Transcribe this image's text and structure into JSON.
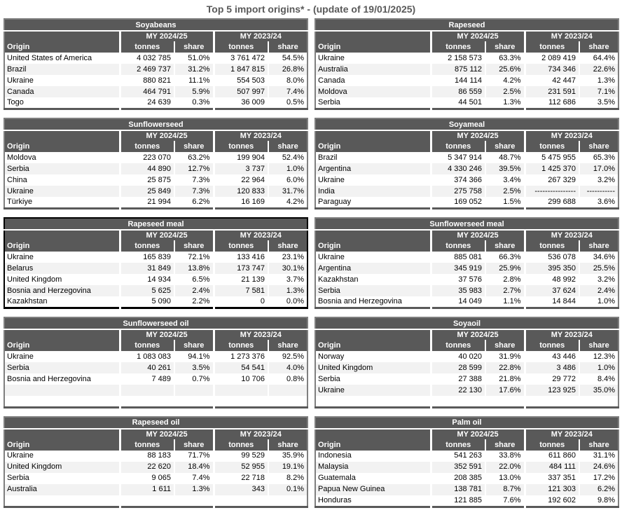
{
  "page_title": "Top 5 import origins* - (update of 19/01/2025)",
  "table_headers": {
    "origin": "Origin",
    "period_current": "MY 2024/25",
    "period_previous": "MY 2023/24",
    "tonnes": "tonnes",
    "share": "share"
  },
  "colors": {
    "header_bg": "#595959",
    "row_alt_bg": "#f2f2f2",
    "table_border": "#7f7f7f",
    "table_border_bottom": "#595959",
    "highlight_border": "#000000",
    "title_text": "#595959"
  },
  "tables": [
    {
      "name": "Soyabeans",
      "highlighted": false,
      "rows": [
        [
          "United States of America",
          "4 032 785",
          "51.0%",
          "3 761 472",
          "54.5%"
        ],
        [
          "Brazil",
          "2 469 737",
          "31.2%",
          "1 847 815",
          "26.8%"
        ],
        [
          "Ukraine",
          "880 821",
          "11.1%",
          "554 503",
          "8.0%"
        ],
        [
          "Canada",
          "464 791",
          "5.9%",
          "507 997",
          "7.4%"
        ],
        [
          "Togo",
          "24 639",
          "0.3%",
          "36 009",
          "0.5%"
        ]
      ]
    },
    {
      "name": "Rapeseed",
      "highlighted": false,
      "rows": [
        [
          "Ukraine",
          "2 158 573",
          "63.3%",
          "2 089 419",
          "64.4%"
        ],
        [
          "Australia",
          "875 112",
          "25.6%",
          "734 346",
          "22.6%"
        ],
        [
          "Canada",
          "144 114",
          "4.2%",
          "42 447",
          "1.3%"
        ],
        [
          "Moldova",
          "86 559",
          "2.5%",
          "231 591",
          "7.1%"
        ],
        [
          "Serbia",
          "44 501",
          "1.3%",
          "112 686",
          "3.5%"
        ]
      ]
    },
    {
      "name": "Sunflowerseed",
      "highlighted": false,
      "rows": [
        [
          "Moldova",
          "223 070",
          "63.2%",
          "199 904",
          "52.4%"
        ],
        [
          "Serbia",
          "44 890",
          "12.7%",
          "3 737",
          "1.0%"
        ],
        [
          "China",
          "25 875",
          "7.3%",
          "22 964",
          "6.0%"
        ],
        [
          "Ukraine",
          "25 849",
          "7.3%",
          "120 833",
          "31.7%"
        ],
        [
          "Türkiye",
          "21 994",
          "6.2%",
          "16 169",
          "4.2%"
        ]
      ]
    },
    {
      "name": "Soyameal",
      "highlighted": false,
      "rows": [
        [
          "Brazil",
          "5 347 914",
          "48.7%",
          "5 475 955",
          "65.3%"
        ],
        [
          "Argentina",
          "4 330 246",
          "39.5%",
          "1 425 370",
          "17.0%"
        ],
        [
          "Ukraine",
          "374 366",
          "3.4%",
          "267 329",
          "3.2%"
        ],
        [
          "India",
          "275 758",
          "2.5%",
          "----------------",
          "-----------"
        ],
        [
          "Paraguay",
          "169 052",
          "1.5%",
          "299 688",
          "3.6%"
        ]
      ]
    },
    {
      "name": "Rapeseed meal",
      "highlighted": true,
      "rows": [
        [
          "Ukraine",
          "165 839",
          "72.1%",
          "133 416",
          "23.1%"
        ],
        [
          "Belarus",
          "31 849",
          "13.8%",
          "173 747",
          "30.1%"
        ],
        [
          "United Kingdom",
          "14 934",
          "6.5%",
          "21 139",
          "3.7%"
        ],
        [
          "Bosnia and Herzegovina",
          "5 625",
          "2.4%",
          "7 581",
          "1.3%"
        ],
        [
          "Kazakhstan",
          "5 090",
          "2.2%",
          "0",
          "0.0%"
        ]
      ]
    },
    {
      "name": "Sunflowerseed meal",
      "highlighted": false,
      "rows": [
        [
          "Ukraine",
          "885 081",
          "66.3%",
          "536 078",
          "34.6%"
        ],
        [
          "Argentina",
          "345 919",
          "25.9%",
          "395 350",
          "25.5%"
        ],
        [
          "Kazakhstan",
          "37 576",
          "2.8%",
          "48 992",
          "3.2%"
        ],
        [
          "Serbia",
          "35 983",
          "2.7%",
          "37 624",
          "2.4%"
        ],
        [
          "Bosnia and Herzegovina",
          "14 049",
          "1.1%",
          "14 844",
          "1.0%"
        ]
      ]
    },
    {
      "name": "Sunflowerseed oil",
      "highlighted": false,
      "rows": [
        [
          "Ukraine",
          "1 083 083",
          "94.1%",
          "1 273 376",
          "92.5%"
        ],
        [
          "Serbia",
          "40 261",
          "3.5%",
          "54 541",
          "4.0%"
        ],
        [
          "Bosnia and Herzegovina",
          "7 489",
          "0.7%",
          "10 706",
          "0.8%"
        ],
        [
          "",
          "",
          "",
          "",
          ""
        ],
        [
          "",
          "",
          "",
          "",
          ""
        ]
      ]
    },
    {
      "name": "Soyaoil",
      "highlighted": false,
      "rows": [
        [
          "Norway",
          "40 020",
          "31.9%",
          "43 446",
          "12.3%"
        ],
        [
          "United Kingdom",
          "28 599",
          "22.8%",
          "3 486",
          "1.0%"
        ],
        [
          "Serbia",
          "27 388",
          "21.8%",
          "29 772",
          "8.4%"
        ],
        [
          "Ukraine",
          "22 130",
          "17.6%",
          "123 925",
          "35.0%"
        ],
        [
          "",
          "",
          "",
          "",
          ""
        ]
      ]
    },
    {
      "name": "Rapeseed oil",
      "highlighted": false,
      "rows": [
        [
          "Ukraine",
          "88 183",
          "71.7%",
          "99 529",
          "35.9%"
        ],
        [
          "United Kingdom",
          "22 620",
          "18.4%",
          "52 955",
          "19.1%"
        ],
        [
          "Serbia",
          "9 065",
          "7.4%",
          "22 718",
          "8.2%"
        ],
        [
          "Australia",
          "1 611",
          "1.3%",
          "343",
          "0.1%"
        ],
        [
          "",
          "",
          "",
          "",
          ""
        ]
      ]
    },
    {
      "name": "Palm oil",
      "highlighted": false,
      "rows": [
        [
          "Indonesia",
          "541 263",
          "33.8%",
          "611 860",
          "31.1%"
        ],
        [
          "Malaysia",
          "352 591",
          "22.0%",
          "484 111",
          "24.6%"
        ],
        [
          "Guatemala",
          "208 385",
          "13.0%",
          "337 351",
          "17.2%"
        ],
        [
          "Papua New Guinea",
          "138 781",
          "8.7%",
          "121 303",
          "6.2%"
        ],
        [
          "Honduras",
          "121 885",
          "7.6%",
          "192 602",
          "9.8%"
        ]
      ]
    }
  ]
}
